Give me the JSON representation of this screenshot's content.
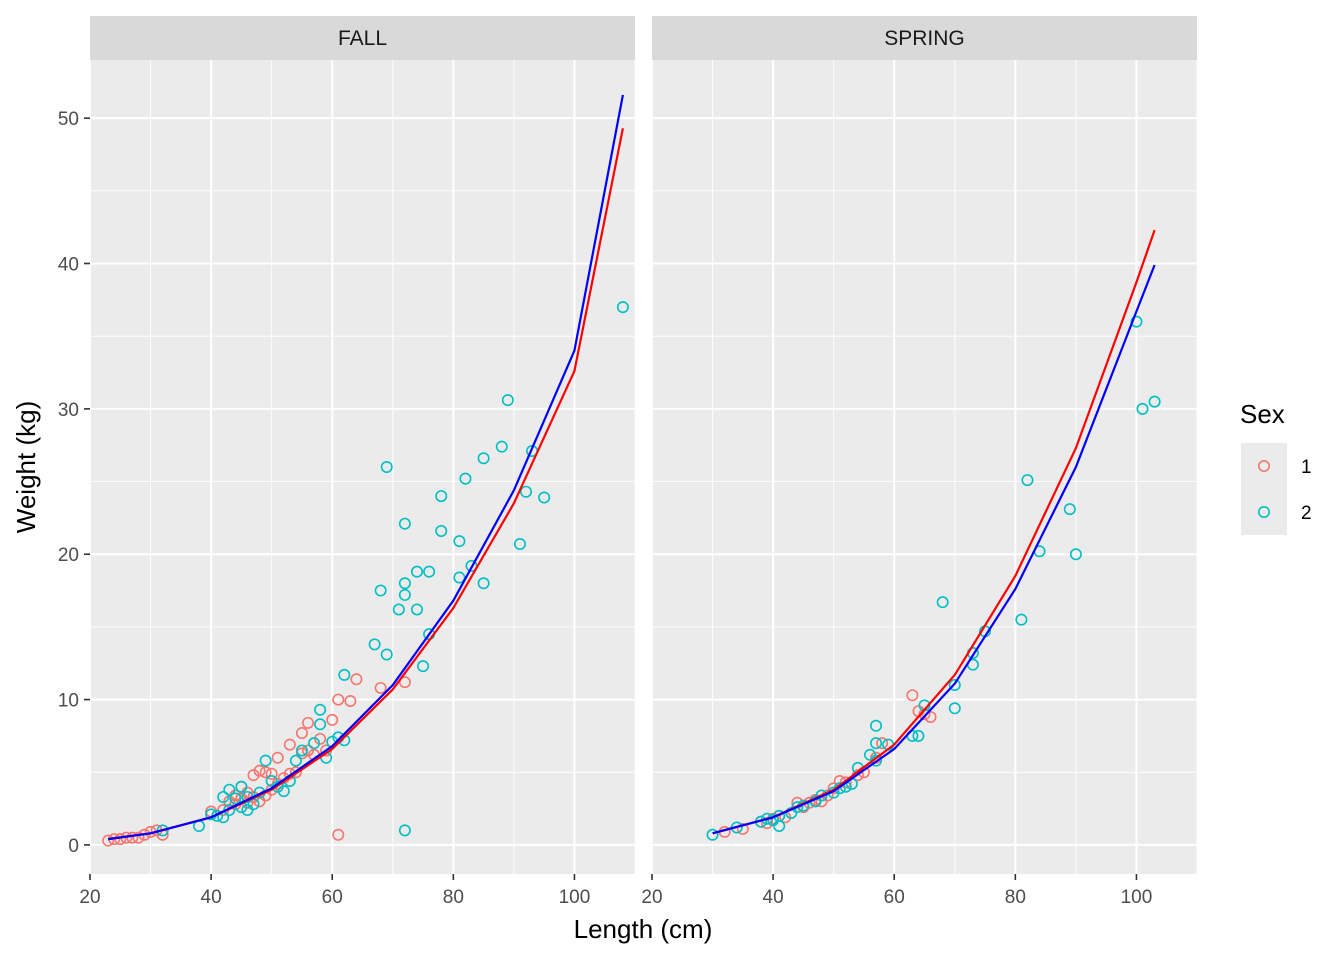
{
  "chart_data": {
    "type": "scatter",
    "facets": [
      "FALL",
      "SPRING"
    ],
    "xlabel": "Length (cm)",
    "ylabel": "Weight (kg)",
    "xlim": [
      20,
      110
    ],
    "ylim": [
      -2,
      54
    ],
    "x_ticks": [
      20,
      40,
      60,
      80,
      100
    ],
    "y_ticks": [
      0,
      10,
      20,
      30,
      40,
      50
    ],
    "grid": true,
    "legend": {
      "title": "Sex",
      "position": "right",
      "entries": [
        {
          "label": "1",
          "color": "#F8766D"
        },
        {
          "label": "2",
          "color": "#00BFC4"
        }
      ]
    },
    "series": [
      {
        "name": "1",
        "color": "#F8766D",
        "marker": "open-circle"
      },
      {
        "name": "2",
        "color": "#00BFC4",
        "marker": "open-circle"
      }
    ],
    "fit_lines": [
      {
        "color": "#ff0000",
        "sex": "1"
      },
      {
        "color": "#0000ff",
        "sex": "2"
      }
    ],
    "panels": [
      {
        "facet": "FALL",
        "points": [
          {
            "sex": "1",
            "points": [
              [
                23,
                0.3
              ],
              [
                24,
                0.4
              ],
              [
                25,
                0.4
              ],
              [
                26,
                0.5
              ],
              [
                27,
                0.5
              ],
              [
                28,
                0.5
              ],
              [
                29,
                0.7
              ],
              [
                30,
                0.9
              ],
              [
                31,
                1.0
              ],
              [
                32,
                0.7
              ],
              [
                40,
                2.3
              ],
              [
                42,
                2.4
              ],
              [
                43,
                3.0
              ],
              [
                44,
                3.4
              ],
              [
                44,
                2.8
              ],
              [
                45,
                4.0
              ],
              [
                45,
                3.2
              ],
              [
                46,
                3.6
              ],
              [
                46,
                2.9
              ],
              [
                47,
                4.8
              ],
              [
                47,
                3.3
              ],
              [
                48,
                5.1
              ],
              [
                48,
                3.0
              ],
              [
                49,
                5.0
              ],
              [
                49,
                3.4
              ],
              [
                50,
                4.9
              ],
              [
                50,
                3.8
              ],
              [
                51,
                6.0
              ],
              [
                51,
                4.2
              ],
              [
                52,
                4.6
              ],
              [
                53,
                6.9
              ],
              [
                53,
                4.9
              ],
              [
                54,
                5.0
              ],
              [
                55,
                7.7
              ],
              [
                55,
                6.3
              ],
              [
                56,
                8.4
              ],
              [
                56,
                6.5
              ],
              [
                57,
                6.2
              ],
              [
                58,
                7.3
              ],
              [
                59,
                6.5
              ],
              [
                60,
                8.6
              ],
              [
                61,
                10.0
              ],
              [
                61,
                0.7
              ],
              [
                63,
                9.9
              ],
              [
                64,
                11.4
              ],
              [
                68,
                10.8
              ],
              [
                72,
                11.2
              ]
            ]
          },
          {
            "sex": "2",
            "points": [
              [
                32,
                1.0
              ],
              [
                38,
                1.3
              ],
              [
                40,
                2.1
              ],
              [
                41,
                2.0
              ],
              [
                42,
                3.3
              ],
              [
                42,
                1.9
              ],
              [
                43,
                3.8
              ],
              [
                43,
                2.4
              ],
              [
                44,
                3.2
              ],
              [
                45,
                4.0
              ],
              [
                45,
                2.6
              ],
              [
                46,
                3.3
              ],
              [
                46,
                2.4
              ],
              [
                47,
                2.8
              ],
              [
                48,
                3.6
              ],
              [
                49,
                5.8
              ],
              [
                50,
                4.4
              ],
              [
                51,
                4.0
              ],
              [
                52,
                3.7
              ],
              [
                53,
                4.4
              ],
              [
                54,
                5.8
              ],
              [
                55,
                6.5
              ],
              [
                57,
                7.0
              ],
              [
                58,
                8.3
              ],
              [
                58,
                9.3
              ],
              [
                59,
                6.0
              ],
              [
                60,
                7.1
              ],
              [
                61,
                7.4
              ],
              [
                62,
                11.7
              ],
              [
                62,
                7.2
              ],
              [
                67,
                13.8
              ],
              [
                68,
                17.5
              ],
              [
                69,
                13.1
              ],
              [
                69,
                26.0
              ],
              [
                71,
                16.2
              ],
              [
                72,
                17.2
              ],
              [
                72,
                18.0
              ],
              [
                72,
                22.1
              ],
              [
                72,
                1.0
              ],
              [
                74,
                18.8
              ],
              [
                74,
                16.2
              ],
              [
                75,
                12.3
              ],
              [
                76,
                18.8
              ],
              [
                76,
                14.5
              ],
              [
                78,
                24.0
              ],
              [
                78,
                21.6
              ],
              [
                81,
                20.9
              ],
              [
                81,
                18.4
              ],
              [
                82,
                25.2
              ],
              [
                83,
                19.2
              ],
              [
                85,
                26.6
              ],
              [
                85,
                18.0
              ],
              [
                88,
                27.4
              ],
              [
                89,
                30.6
              ],
              [
                91,
                20.7
              ],
              [
                92,
                24.3
              ],
              [
                93,
                27.1
              ],
              [
                95,
                23.9
              ],
              [
                108,
                37.0
              ]
            ]
          }
        ],
        "fits": [
          {
            "color": "#ff0000",
            "xy": [
              [
                23,
                0.4
              ],
              [
                30,
                0.8
              ],
              [
                40,
                1.9
              ],
              [
                50,
                3.8
              ],
              [
                60,
                6.6
              ],
              [
                70,
                10.7
              ],
              [
                80,
                16.3
              ],
              [
                90,
                23.5
              ],
              [
                100,
                32.6
              ],
              [
                108,
                49.3
              ]
            ]
          },
          {
            "color": "#0000ff",
            "xy": [
              [
                23,
                0.4
              ],
              [
                30,
                0.8
              ],
              [
                40,
                1.9
              ],
              [
                50,
                3.9
              ],
              [
                60,
                6.8
              ],
              [
                70,
                11.0
              ],
              [
                80,
                16.8
              ],
              [
                90,
                24.4
              ],
              [
                100,
                34.0
              ],
              [
                108,
                51.6
              ]
            ]
          }
        ]
      },
      {
        "facet": "SPRING",
        "points": [
          {
            "sex": "1",
            "points": [
              [
                32,
                0.9
              ],
              [
                35,
                1.1
              ],
              [
                38,
                1.6
              ],
              [
                39,
                1.5
              ],
              [
                40,
                1.8
              ],
              [
                41,
                2.0
              ],
              [
                42,
                1.9
              ],
              [
                44,
                2.9
              ],
              [
                45,
                2.6
              ],
              [
                46,
                2.9
              ],
              [
                47,
                3.1
              ],
              [
                48,
                3.0
              ],
              [
                49,
                3.4
              ],
              [
                50,
                3.9
              ],
              [
                51,
                4.4
              ],
              [
                52,
                4.3
              ],
              [
                54,
                4.8
              ],
              [
                55,
                5.0
              ],
              [
                57,
                6.0
              ],
              [
                58,
                7.0
              ],
              [
                63,
                10.3
              ],
              [
                64,
                9.2
              ],
              [
                65,
                9.0
              ],
              [
                66,
                8.8
              ]
            ]
          },
          {
            "sex": "2",
            "points": [
              [
                30,
                0.7
              ],
              [
                34,
                1.2
              ],
              [
                38,
                1.6
              ],
              [
                39,
                1.8
              ],
              [
                40,
                1.7
              ],
              [
                41,
                1.3
              ],
              [
                41,
                2.0
              ],
              [
                43,
                2.2
              ],
              [
                44,
                2.6
              ],
              [
                45,
                2.7
              ],
              [
                47,
                3.0
              ],
              [
                48,
                3.4
              ],
              [
                50,
                3.6
              ],
              [
                51,
                3.9
              ],
              [
                52,
                4.0
              ],
              [
                53,
                4.2
              ],
              [
                54,
                5.3
              ],
              [
                56,
                6.2
              ],
              [
                57,
                5.8
              ],
              [
                57,
                7.0
              ],
              [
                57,
                8.2
              ],
              [
                59,
                6.9
              ],
              [
                63,
                7.5
              ],
              [
                64,
                7.5
              ],
              [
                65,
                9.6
              ],
              [
                68,
                16.7
              ],
              [
                70,
                11.0
              ],
              [
                70,
                9.4
              ],
              [
                73,
                13.2
              ],
              [
                73,
                12.4
              ],
              [
                75,
                14.7
              ],
              [
                81,
                15.5
              ],
              [
                82,
                25.1
              ],
              [
                84,
                20.2
              ],
              [
                89,
                23.1
              ],
              [
                90,
                20.0
              ],
              [
                100,
                36.0
              ],
              [
                101,
                30.0
              ],
              [
                103,
                30.5
              ]
            ]
          }
        ],
        "fits": [
          {
            "color": "#ff0000",
            "xy": [
              [
                30,
                0.8
              ],
              [
                40,
                1.9
              ],
              [
                50,
                3.8
              ],
              [
                60,
                6.9
              ],
              [
                70,
                11.7
              ],
              [
                80,
                18.5
              ],
              [
                90,
                27.3
              ],
              [
                100,
                38.7
              ],
              [
                103,
                42.3
              ]
            ]
          },
          {
            "color": "#0000ff",
            "xy": [
              [
                30,
                0.8
              ],
              [
                40,
                1.9
              ],
              [
                50,
                3.7
              ],
              [
                60,
                6.6
              ],
              [
                70,
                11.1
              ],
              [
                80,
                17.6
              ],
              [
                90,
                26.0
              ],
              [
                100,
                36.7
              ],
              [
                103,
                39.9
              ]
            ]
          }
        ]
      }
    ]
  }
}
